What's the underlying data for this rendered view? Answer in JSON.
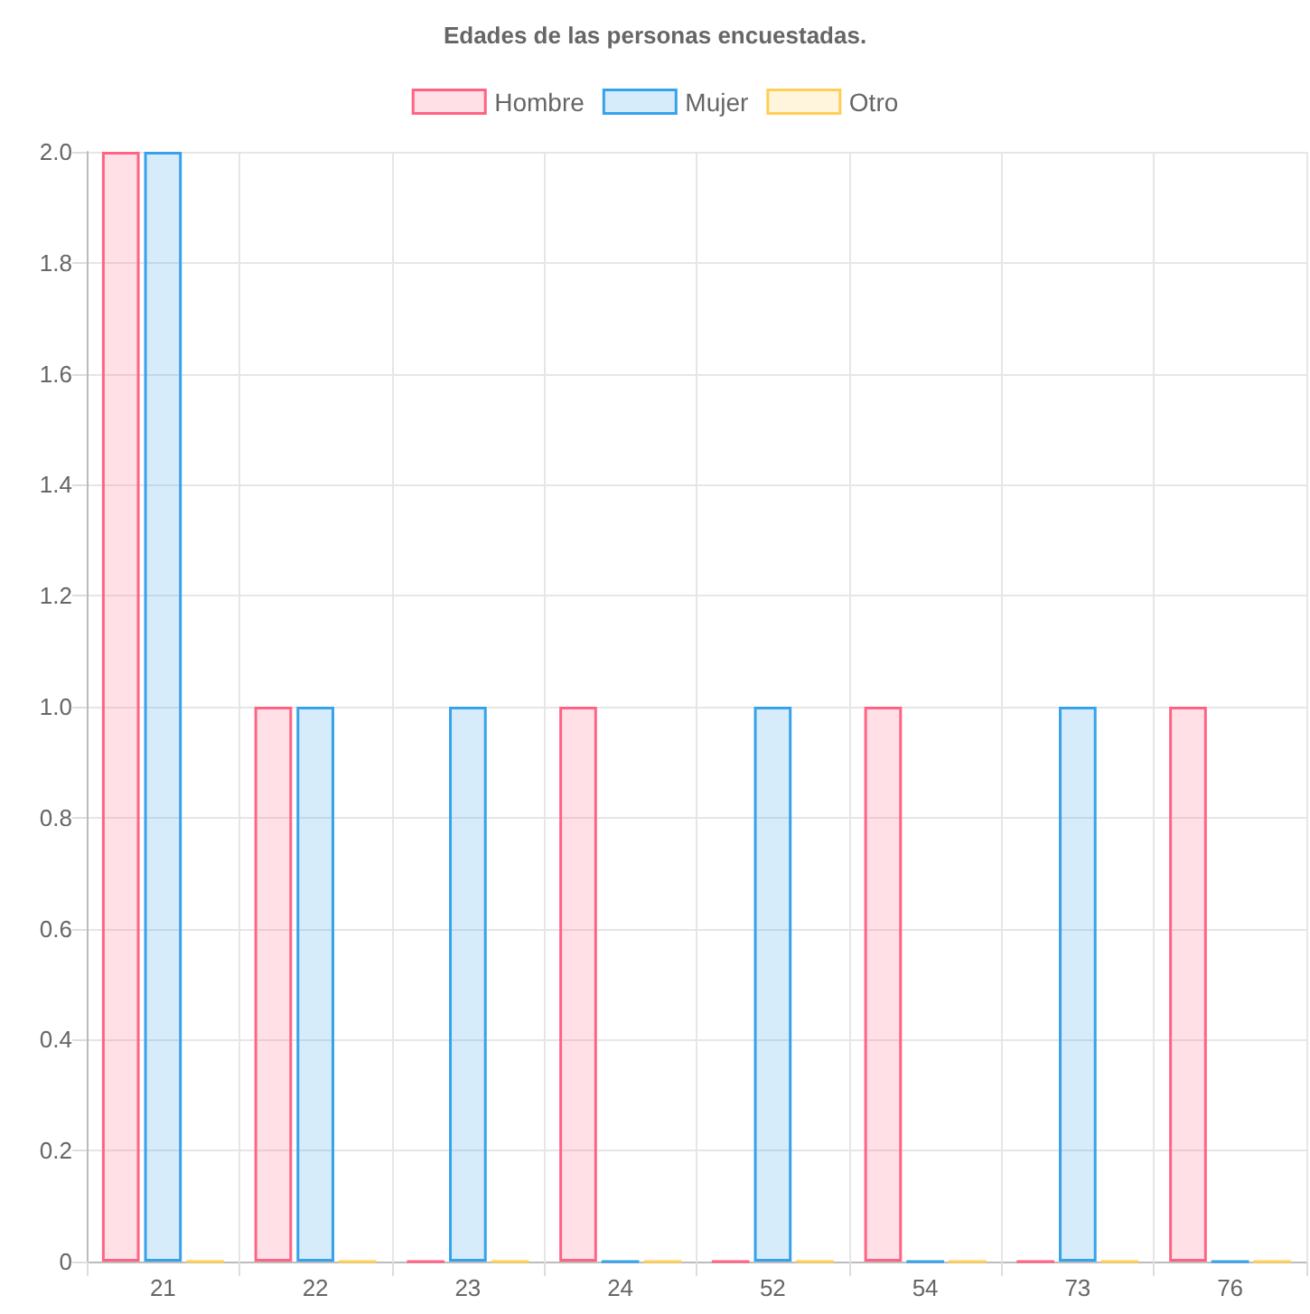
{
  "chart_data": {
    "type": "bar",
    "title": "Edades de las personas encuestadas.",
    "categories": [
      "21",
      "22",
      "23",
      "24",
      "52",
      "54",
      "73",
      "76"
    ],
    "series": [
      {
        "name": "Hombre",
        "color": "#ff6384",
        "values": [
          2,
          1,
          0,
          1,
          0,
          1,
          0,
          1
        ]
      },
      {
        "name": "Mujer",
        "color": "#36a2eb",
        "values": [
          2,
          1,
          1,
          0,
          1,
          0,
          1,
          0
        ]
      },
      {
        "name": "Otro",
        "color": "#ffce56",
        "values": [
          0,
          0,
          0,
          0,
          0,
          0,
          0,
          0
        ]
      }
    ],
    "ylim": [
      0,
      2
    ],
    "yticks": [
      0,
      {
        "value": 0.2,
        "label": "0.2"
      },
      {
        "value": 0.4,
        "label": "0.4"
      },
      {
        "value": 0.6,
        "label": "0.6"
      },
      {
        "value": 0.8,
        "label": "0.8"
      },
      {
        "value": 1,
        "label": "1.0"
      },
      {
        "value": 1.2,
        "label": "1.2"
      },
      {
        "value": 1.4,
        "label": "1.4"
      },
      {
        "value": 1.6,
        "label": "1.6"
      },
      {
        "value": 1.8,
        "label": "1.8"
      },
      {
        "value": 2,
        "label": "2.0"
      }
    ],
    "grid": true,
    "legend": "top"
  }
}
